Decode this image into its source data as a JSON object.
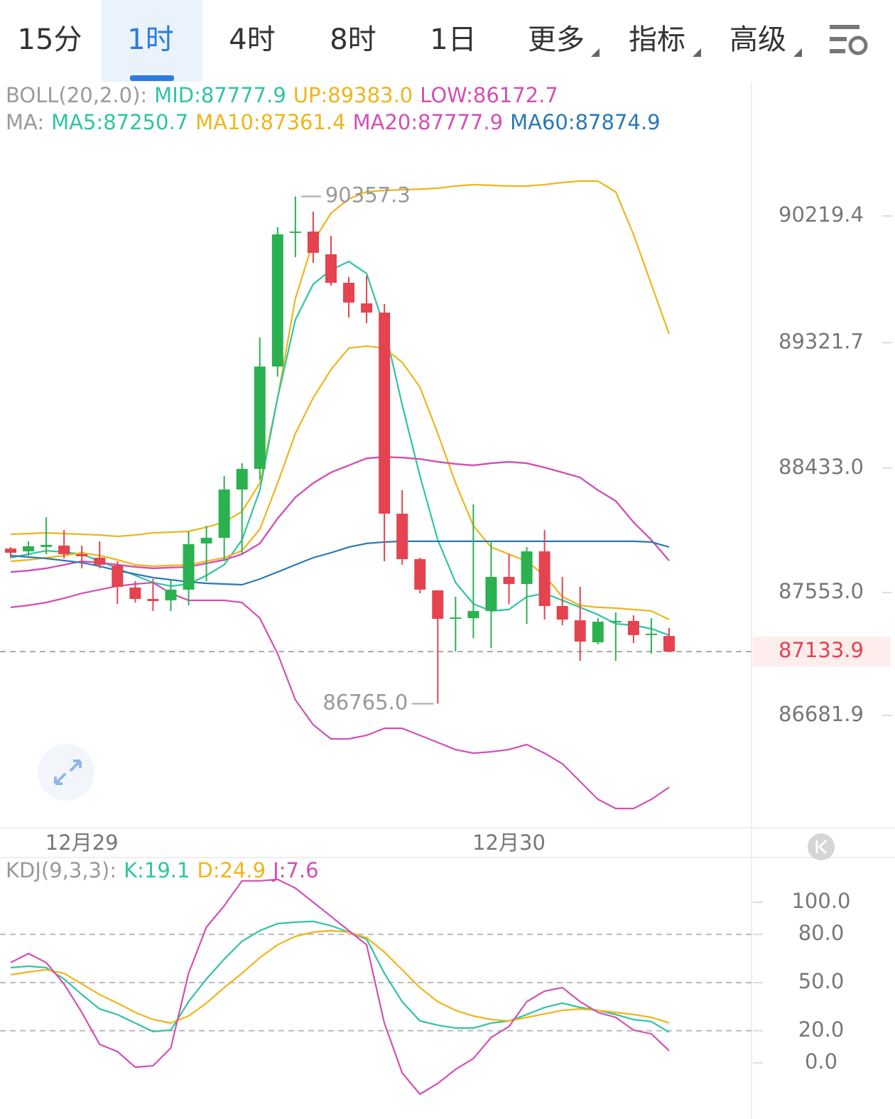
{
  "tabs": [
    "15分",
    "1时",
    "4时",
    "8时",
    "1日",
    "更多",
    "指标",
    "高级"
  ],
  "selected_tab": 1,
  "chart_data": [
    {
      "type": "candlestick",
      "legend": [
        [
          {
            "text": "BOLL(20,2.0):",
            "color": "#9a9a9a"
          },
          {
            "text": "MID:87777.9",
            "color": "#2fc4a4"
          },
          {
            "text": "UP:89383.0",
            "color": "#efb51a"
          },
          {
            "text": "LOW:86172.7",
            "color": "#d24fb6"
          }
        ],
        [
          {
            "text": "MA:",
            "color": "#9a9a9a"
          },
          {
            "text": "MA5:87250.7",
            "color": "#2fc4a4"
          },
          {
            "text": "MA10:87361.4",
            "color": "#efb51a"
          },
          {
            "text": "MA20:87777.9",
            "color": "#d24fb6"
          },
          {
            "text": "MA60:87874.9",
            "color": "#2a78b5"
          }
        ]
      ],
      "categories": [
        null,
        null,
        null,
        null,
        "12月29",
        null,
        null,
        null,
        null,
        null,
        null,
        null,
        null,
        null,
        null,
        null,
        null,
        null,
        null,
        null,
        null,
        null,
        null,
        null,
        null,
        null,
        null,
        null,
        "12月30",
        null,
        null,
        null,
        null,
        null,
        null,
        null,
        null,
        null
      ],
      "open": [
        87864,
        87844,
        87875,
        87885,
        87824,
        87799,
        87744,
        87588,
        87507,
        87497,
        87573,
        87900,
        87940,
        88282,
        88428,
        89153,
        90099,
        90109,
        89948,
        89746,
        89600,
        89535,
        88111,
        87789,
        87568,
        87366,
        87371,
        87422,
        87663,
        87613,
        87844,
        87457,
        87356,
        87200,
        87341,
        87351,
        87256,
        87245
      ],
      "close": [
        87834,
        87880,
        87890,
        87824,
        87809,
        87749,
        87593,
        87507,
        87492,
        87573,
        87895,
        87940,
        88282,
        88428,
        89153,
        90089,
        90109,
        89958,
        89746,
        89606,
        89535,
        88111,
        87789,
        87573,
        87366,
        87376,
        87422,
        87663,
        87613,
        87844,
        87457,
        87361,
        87205,
        87346,
        87351,
        87251,
        87261,
        87133.9
      ],
      "high": [
        87875,
        87915,
        88086,
        87995,
        87885,
        87915,
        87774,
        87633,
        87648,
        87648,
        87985,
        88025,
        88378,
        88468,
        89359,
        90139,
        90357.3,
        90250,
        90079,
        89787,
        89797,
        89595,
        88277,
        87799,
        87568,
        87522,
        88176,
        87915,
        87824,
        87875,
        87995,
        87663,
        87593,
        87371,
        87411,
        87391,
        87371,
        87301
      ],
      "low": [
        87799,
        87814,
        87824,
        87794,
        87724,
        87724,
        87472,
        87482,
        87422,
        87422,
        87462,
        87633,
        87774,
        87824,
        88353,
        89082,
        89928,
        89887,
        89726,
        89500,
        89460,
        87774,
        87749,
        87547,
        86765.0,
        87135,
        87230,
        87160,
        87472,
        87331,
        87361,
        87321,
        87069,
        87185,
        87069,
        87195,
        87120,
        87133.9
      ],
      "up_color": "#2bb150",
      "down_color": "#e4434f",
      "series": [
        {
          "color": "#efb51a",
          "values": [
            87965,
            87970,
            87975,
            87970,
            87965,
            87960,
            87950,
            87960,
            87975,
            87980,
            87985,
            88016,
            88050,
            88126,
            88327,
            88931,
            89636,
            90038,
            90239,
            90340,
            90390,
            90400,
            90405,
            90410,
            90416,
            90431,
            90441,
            90436,
            90431,
            90431,
            90441,
            90456,
            90466,
            90466,
            90390,
            90088,
            89736,
            89383.0
          ]
        },
        {
          "color": "#d24fb6",
          "values": [
            87698,
            87708,
            87724,
            87749,
            87774,
            87764,
            87749,
            87734,
            87724,
            87729,
            87734,
            87759,
            87784,
            87824,
            87900,
            88076,
            88227,
            88327,
            88403,
            88453,
            88503,
            88513,
            88508,
            88498,
            88478,
            88463,
            88453,
            88468,
            88478,
            88468,
            88438,
            88403,
            88367,
            88277,
            88201,
            88050,
            87925,
            87777.9
          ]
        },
        {
          "color": "#d24fb6",
          "values": [
            87447,
            87462,
            87482,
            87512,
            87547,
            87573,
            87598,
            87613,
            87623,
            87547,
            87497,
            87497,
            87497,
            87482,
            87371,
            87120,
            86792,
            86616,
            86516,
            86516,
            86541,
            86591,
            86591,
            86541,
            86491,
            86440,
            86415,
            86425,
            86440,
            86476,
            86415,
            86340,
            86214,
            86088,
            86023,
            86023,
            86088,
            86172.7
          ]
        },
        {
          "color": "#2fc4a4",
          "values": [
            87799,
            87824,
            87849,
            87839,
            87824,
            87774,
            87724,
            87673,
            87623,
            87598,
            87613,
            87673,
            87749,
            87925,
            88277,
            88931,
            89485,
            89736,
            89837,
            89897,
            89812,
            89434,
            88881,
            88378,
            87925,
            87623,
            87472,
            87422,
            87432,
            87522,
            87547,
            87497,
            87447,
            87396,
            87331,
            87321,
            87296,
            87250.7
          ]
        },
        {
          "color": "#efb51a",
          "values": [
            87774,
            87784,
            87799,
            87814,
            87834,
            87814,
            87784,
            87749,
            87739,
            87744,
            87749,
            87774,
            87799,
            87849,
            88000,
            88327,
            88679,
            88931,
            89132,
            89283,
            89298,
            89283,
            89183,
            89007,
            88679,
            88327,
            88025,
            87874,
            87824,
            87774,
            87673,
            87522,
            87462,
            87447,
            87442,
            87432,
            87422,
            87361.4
          ]
        },
        {
          "color": "#d24fb6",
          "values": [
            87698,
            87708,
            87724,
            87749,
            87774,
            87764,
            87749,
            87734,
            87724,
            87729,
            87734,
            87759,
            87784,
            87824,
            87900,
            88076,
            88227,
            88327,
            88403,
            88453,
            88503,
            88513,
            88508,
            88498,
            88478,
            88463,
            88453,
            88468,
            88478,
            88468,
            88438,
            88403,
            88367,
            88277,
            88201,
            88050,
            87925,
            87777.9
          ]
        },
        {
          "color": "#2a78b5",
          "values": [
            87814,
            87804,
            87794,
            87779,
            87764,
            87739,
            87708,
            87683,
            87658,
            87643,
            87628,
            87618,
            87613,
            87608,
            87648,
            87698,
            87749,
            87799,
            87834,
            87874,
            87900,
            87910,
            87915,
            87915,
            87915,
            87915,
            87915,
            87915,
            87915,
            87915,
            87915,
            87915,
            87915,
            87915,
            87915,
            87915,
            87910,
            87874.9
          ]
        }
      ],
      "ylim": [
        85887,
        91170
      ],
      "yticks": [
        90219.4,
        89321.7,
        {
          "value": 88433.0,
          "label": "88433.0"
        },
        {
          "value": 87553.0,
          "label": "87553.0"
        },
        86681.9
      ],
      "annotations": [
        {
          "index": 16,
          "value": 90357.3,
          "label": "90357.3",
          "side": "right"
        },
        {
          "index": 24,
          "value": 86765.0,
          "label": "86765.0",
          "side": "left"
        }
      ],
      "last_price": {
        "value": 87133.9,
        "label": "87133.9",
        "color": "#e4434f"
      }
    },
    {
      "type": "line",
      "legend": [
        [
          {
            "text": "KDJ(9,3,3):",
            "color": "#9a9a9a"
          },
          {
            "text": "K:19.1",
            "color": "#2fc4a4"
          },
          {
            "text": "D:24.9",
            "color": "#efb51a"
          },
          {
            "text": "J:7.6",
            "color": "#d24fb6"
          }
        ]
      ],
      "series": [
        {
          "color": "#2fc4a4",
          "values": [
            59.3,
            60.2,
            59.3,
            52.2,
            42.5,
            33.6,
            30.1,
            24.8,
            19.5,
            20.4,
            38.1,
            52.2,
            64.6,
            75.7,
            82.3,
            86.7,
            87.6,
            88.1,
            85.4,
            81.4,
            77.0,
            55.8,
            38.1,
            26.1,
            23.5,
            21.7,
            21.7,
            24.8,
            26.1,
            30.1,
            34.5,
            37.2,
            34.5,
            32.7,
            30.1,
            27.0,
            25.7,
            19.1
          ]
        },
        {
          "color": "#efb51a",
          "values": [
            54.9,
            56.6,
            58.0,
            55.8,
            49.1,
            42.5,
            37.2,
            31.4,
            27.0,
            24.8,
            29.2,
            37.2,
            46.9,
            55.8,
            65.5,
            73.5,
            78.8,
            81.4,
            82.3,
            81.4,
            77.9,
            69.0,
            58.0,
            46.9,
            38.1,
            32.7,
            29.2,
            27.0,
            26.1,
            28.3,
            30.5,
            32.7,
            33.6,
            32.7,
            31.4,
            30.1,
            28.3,
            24.9
          ]
        },
        {
          "color": "#d24fb6",
          "values": [
            62.4,
            68.1,
            62.4,
            49.1,
            31.4,
            11.5,
            7.1,
            -2.7,
            -1.8,
            9.3,
            55.8,
            84.5,
            97.8,
            113.3,
            113.3,
            114.2,
            108.8,
            100.0,
            91.2,
            82.3,
            73.5,
            24.8,
            -6.2,
            -19.5,
            -12.8,
            -4.0,
            2.7,
            15.9,
            22.6,
            38.1,
            44.7,
            46.9,
            38.1,
            31.4,
            28.3,
            20.4,
            18.1,
            7.6
          ]
        }
      ],
      "ylim": [
        -30.5,
        126.5
      ],
      "yticks": [
        {
          "value": 100,
          "label": "100.0",
          "grid": false
        },
        {
          "value": 80,
          "label": "80.0",
          "grid": true
        },
        {
          "value": 50,
          "label": "50.0",
          "grid": true
        },
        {
          "value": 20,
          "label": "20.0",
          "grid": true
        },
        {
          "value": 0,
          "label": "0.0",
          "grid": false
        }
      ]
    }
  ]
}
